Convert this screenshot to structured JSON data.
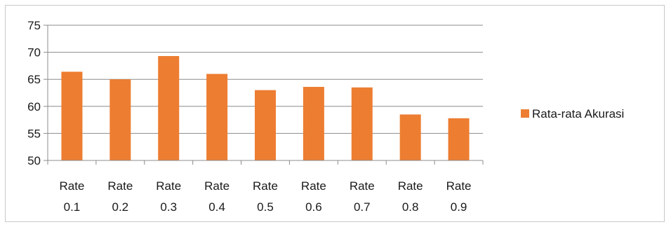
{
  "chart_data": {
    "type": "bar",
    "title": "",
    "xlabel": "",
    "ylabel": "",
    "categories": [
      [
        "Rate",
        "0.1"
      ],
      [
        "Rate",
        "0.2"
      ],
      [
        "Rate",
        "0.3"
      ],
      [
        "Rate",
        "0.4"
      ],
      [
        "Rate",
        "0.5"
      ],
      [
        "Rate",
        "0.6"
      ],
      [
        "Rate",
        "0.7"
      ],
      [
        "Rate",
        "0.8"
      ],
      [
        "Rate",
        "0.9"
      ]
    ],
    "series": [
      {
        "name": "Rata-rata Akurasi",
        "color": "#ED7D31",
        "values": [
          66.4,
          65.0,
          69.3,
          66.0,
          63.0,
          63.6,
          63.5,
          58.5,
          57.8
        ]
      }
    ],
    "ylim": [
      50,
      75
    ],
    "yticks": [
      50,
      55,
      60,
      65,
      70,
      75
    ],
    "grid": true,
    "legend_position": "right",
    "axis_color": "#8c8c8c",
    "grid_color": "#8c8c8c"
  }
}
